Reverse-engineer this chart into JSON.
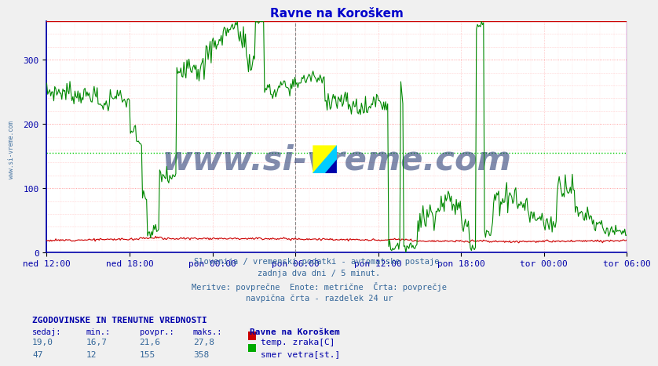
{
  "title": "Ravne na Koroškem",
  "title_color": "#0000cc",
  "bg_color": "#f0f0f0",
  "plot_bg_color": "#ffffff",
  "ylabel_color": "#0000aa",
  "xlabel_color": "#0000aa",
  "ylim": [
    0,
    360
  ],
  "yticks": [
    0,
    100,
    200,
    300
  ],
  "x_tick_labels": [
    "ned 12:00",
    "ned 18:00",
    "pon 00:00",
    "pon 06:00",
    "pon 12:00",
    "pon 18:00",
    "tor 00:00",
    "tor 06:00"
  ],
  "avg_line_value": 155,
  "avg_line_color": "#00cc00",
  "vline_color_dashed": "#888888",
  "vline_color_right": "#cc00cc",
  "watermark_text": "www.si-vreme.com",
  "watermark_color": "#1a2e6b",
  "watermark_alpha": 0.55,
  "subtitle_lines": [
    "Slovenija / vremenski podatki - avtomatske postaje.",
    "zadnja dva dni / 5 minut.",
    "Meritve: povprečne  Enote: metrične  Črta: povprečje",
    "navpična črta - razdelek 24 ur"
  ],
  "subtitle_color": "#336699",
  "legend_title": "Ravne na Koroškem",
  "legend_items": [
    {
      "label": "temp. zraka[C]",
      "color": "#cc0000"
    },
    {
      "label": "smer vetra[st.]",
      "color": "#00aa00"
    }
  ],
  "stats_header": "ZGODOVINSKE IN TRENUTNE VREDNOSTI",
  "stats_cols": [
    "sedaj:",
    "min.:",
    "povpr.:",
    "maks.:"
  ],
  "stats_rows": [
    [
      "19,0",
      "16,7",
      "21,6",
      "27,8"
    ],
    [
      "47",
      "12",
      "155",
      "358"
    ]
  ],
  "left_label": "www.si-vreme.com",
  "left_label_color": "#336699",
  "n_points": 576
}
